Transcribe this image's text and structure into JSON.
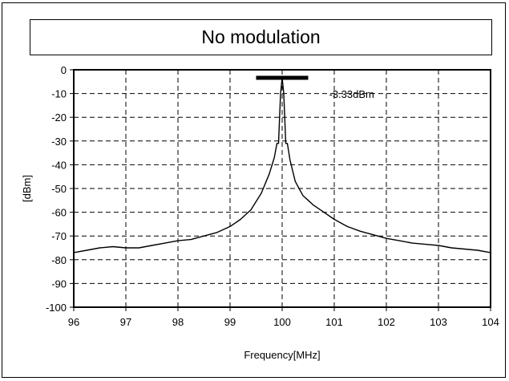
{
  "chart_data": {
    "type": "line",
    "title": "No modulation",
    "xlabel": "Frequency[MHz]",
    "ylabel": "[dBm]",
    "xlim": [
      96,
      104
    ],
    "ylim": [
      -100,
      0
    ],
    "xticks": [
      96,
      97,
      98,
      99,
      100,
      101,
      102,
      103,
      104
    ],
    "yticks": [
      0,
      -10,
      -20,
      -30,
      -40,
      -50,
      -60,
      -70,
      -80,
      -90,
      -100
    ],
    "xtick_labels": [
      "96",
      "97",
      "98",
      "99",
      "100",
      "101",
      "102",
      "103",
      "104"
    ],
    "ytick_labels": [
      "0",
      "-10",
      "-20",
      "-30",
      "-40",
      "-50",
      "-60",
      "-70",
      "-80",
      "-90",
      "-100"
    ],
    "grid": true,
    "grid_style": "dashed",
    "annotation": {
      "text": "-3.33dBm",
      "peak_x": 100.0,
      "peak_y": -3.33,
      "bar_x": [
        99.5,
        100.5
      ]
    },
    "series": [
      {
        "color": "#000000",
        "x": [
          96.0,
          96.25,
          96.5,
          96.75,
          97.0,
          97.25,
          97.5,
          97.75,
          98.0,
          98.25,
          98.5,
          98.75,
          99.0,
          99.2,
          99.4,
          99.6,
          99.75,
          99.85,
          99.9,
          99.93,
          99.95,
          99.97,
          100.0,
          100.03,
          100.05,
          100.07,
          100.1,
          100.15,
          100.25,
          100.4,
          100.6,
          100.8,
          101.0,
          101.25,
          101.5,
          101.75,
          102.0,
          102.25,
          102.5,
          102.75,
          103.0,
          103.25,
          103.5,
          103.75,
          104.0
        ],
        "y": [
          -77,
          -76,
          -75,
          -74.5,
          -75,
          -75,
          -74,
          -73,
          -72,
          -71.5,
          -70,
          -68.5,
          -66,
          -63,
          -59,
          -52,
          -44,
          -37,
          -31,
          -31,
          -20,
          -10,
          -3.33,
          -10,
          -20,
          -31,
          -31,
          -38,
          -47,
          -53,
          -57,
          -60,
          -63,
          -66,
          -68,
          -69.5,
          -71,
          -72,
          -73,
          -73.5,
          -74,
          -75,
          -75.5,
          -76,
          -77
        ]
      }
    ]
  }
}
